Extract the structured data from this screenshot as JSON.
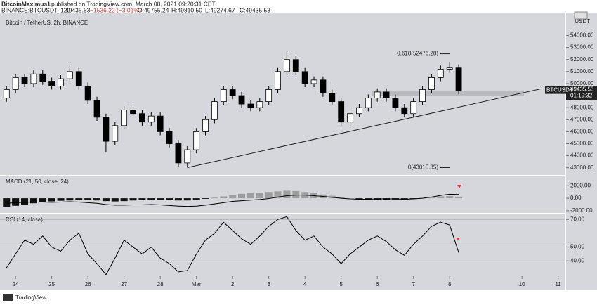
{
  "header": {
    "author": "BitcoinMaximus1",
    "published": "published on TradingView.com, March 08, 2021 09:20:31 CET",
    "symbol": "BINANCE:BTCUSDT, 120",
    "last": "49435.53",
    "change": "−1536.22 (−3.01%)",
    "open": "O:49755.24",
    "high": "H:49810.50",
    "low": "L:49274.67",
    "close": "C:49435.53"
  },
  "footer": {
    "brand": "TradingView"
  },
  "chart_data": [
    {
      "type": "candlestick",
      "title": "Bitcoin / TetherUS, 2h, BINANCE",
      "unit": "USDT",
      "symbol": "BTCUSDT",
      "price_tag": "49435.53",
      "countdown": "01:19:32",
      "x": [
        -0.25,
        0,
        0.25,
        0.5,
        0.75,
        1,
        1.25,
        1.5,
        1.75,
        2,
        2.25,
        2.5,
        2.75,
        3,
        3.25,
        3.5,
        3.75,
        4,
        4.25,
        4.5,
        4.75,
        5,
        5.25,
        5.5,
        5.75,
        6,
        6.25,
        6.5,
        6.75,
        7,
        7.25,
        7.5,
        7.75,
        8,
        8.25,
        8.5,
        8.75,
        9,
        9.25,
        9.5,
        9.75,
        10,
        10.25,
        10.5,
        10.75,
        11,
        11.25,
        11.5,
        11.75,
        12,
        12.25
      ],
      "open": [
        48800,
        49500,
        50500,
        50000,
        50800,
        50200,
        49800,
        50400,
        51000,
        49800,
        48600,
        47200,
        45200,
        46500,
        47800,
        47500,
        46800,
        47300,
        46000,
        45000,
        43400,
        44500,
        46000,
        47000,
        48500,
        49500,
        49000,
        48300,
        48000,
        48500,
        49500,
        51000,
        52000,
        51000,
        50000,
        50300,
        49200,
        48500,
        46800,
        47500,
        48000,
        48800,
        49300,
        48800,
        48000,
        47500,
        48500,
        49500,
        50500,
        51200,
        51300
      ],
      "high": [
        49800,
        50800,
        50800,
        51100,
        51100,
        50500,
        50700,
        51500,
        51300,
        50100,
        48900,
        47500,
        46800,
        48100,
        48100,
        47800,
        47600,
        47600,
        46300,
        45300,
        44800,
        46300,
        47300,
        48800,
        49800,
        49800,
        49300,
        48600,
        48800,
        49800,
        51300,
        52700,
        52300,
        51300,
        50600,
        50600,
        49500,
        48800,
        47800,
        48300,
        49100,
        49600,
        49600,
        49100,
        48300,
        48800,
        49800,
        50800,
        51500,
        51800,
        51600
      ],
      "low": [
        48500,
        49200,
        49700,
        49700,
        49900,
        49500,
        49500,
        50100,
        49500,
        48300,
        46900,
        44300,
        44900,
        46200,
        47200,
        46500,
        46500,
        45700,
        44700,
        43100,
        43015.35,
        44200,
        45700,
        46700,
        48200,
        48700,
        48000,
        47700,
        47700,
        48200,
        49200,
        50700,
        50700,
        49700,
        49700,
        48900,
        48200,
        46500,
        46300,
        47200,
        47700,
        48500,
        48500,
        47700,
        47200,
        47200,
        48200,
        49200,
        50200,
        50900,
        49100
      ],
      "close": [
        49500,
        50500,
        50000,
        50800,
        50200,
        49800,
        50400,
        51000,
        49800,
        48600,
        47200,
        45200,
        46500,
        47800,
        47500,
        46800,
        47300,
        46000,
        45000,
        43400,
        44500,
        46000,
        47000,
        48500,
        49500,
        49000,
        48300,
        48000,
        48500,
        49500,
        51000,
        52000,
        51000,
        50000,
        50300,
        49200,
        48500,
        46800,
        47500,
        48000,
        48800,
        49300,
        48800,
        48000,
        47500,
        48500,
        49500,
        50500,
        51200,
        51300,
        49435.53
      ],
      "colors": {
        "up": "#ffffff",
        "down": "#000000",
        "outline": "#000000"
      },
      "xlim": [
        -0.43,
        15.2
      ],
      "ylim": [
        42400,
        55900
      ],
      "yticks": [
        {
          "value": 54000,
          "label": "54000.00"
        },
        {
          "value": 53000,
          "label": "53000.00"
        },
        {
          "value": 52000,
          "label": "52000.00"
        },
        {
          "value": 51000,
          "label": "51000.00"
        },
        {
          "value": 50000,
          "label": "50000.00"
        },
        {
          "value": 49000,
          "label": "49000.00"
        },
        {
          "value": 48000,
          "label": "48000.00"
        },
        {
          "value": 47000,
          "label": "47000.00"
        },
        {
          "value": 46000,
          "label": "46000.00"
        },
        {
          "value": 45000,
          "label": "45000.00"
        },
        {
          "value": 44000,
          "label": "44000.00"
        },
        {
          "value": 43000,
          "label": "43000.00"
        }
      ],
      "trendline": {
        "x": [
          4.75,
          14.52
        ],
        "y": [
          43015.35,
          49560
        ]
      },
      "zone": {
        "x": [
          9.86,
          14.04
        ],
        "y": [
          48980,
          49400
        ]
      },
      "fib": [
        {
          "label": "0.618(52476.28)",
          "value": 52476.28
        },
        {
          "label": "0(43015.35)",
          "value": 43015.35
        }
      ]
    },
    {
      "type": "macd",
      "title": "MACD (21, 50, close, 24)",
      "x": [
        -0.25,
        0,
        0.25,
        0.5,
        0.75,
        1,
        1.25,
        1.5,
        1.75,
        2,
        2.25,
        2.5,
        2.75,
        3,
        3.25,
        3.5,
        3.75,
        4,
        4.25,
        4.5,
        4.75,
        5,
        5.25,
        5.5,
        5.75,
        6,
        6.25,
        6.5,
        6.75,
        7,
        7.25,
        7.5,
        7.75,
        8,
        8.25,
        8.5,
        8.75,
        9,
        9.25,
        9.5,
        9.75,
        10,
        10.25,
        10.5,
        10.75,
        11,
        11.25,
        11.5,
        11.75,
        12,
        12.25
      ],
      "histogram": [
        -1400,
        -1200,
        -1000,
        -800,
        -600,
        -500,
        -400,
        -350,
        -300,
        -300,
        -350,
        -450,
        -500,
        -450,
        -350,
        -300,
        -250,
        -250,
        -300,
        -350,
        -350,
        -250,
        -100,
        100,
        300,
        500,
        700,
        800,
        900,
        1000,
        1100,
        1200,
        1150,
        1000,
        800,
        600,
        400,
        200,
        0,
        -200,
        -300,
        -300,
        -250,
        -200,
        -200,
        -100,
        50,
        200,
        300,
        350,
        250
      ],
      "macd": [
        -800,
        -700,
        -650,
        -600,
        -600,
        -650,
        -600,
        -550,
        -600,
        -700,
        -800,
        -1000,
        -1100,
        -1100,
        -1050,
        -1050,
        -1000,
        -1050,
        -1150,
        -1250,
        -1300,
        -1250,
        -1100,
        -900,
        -700,
        -500,
        -400,
        -300,
        -200,
        -50,
        200,
        400,
        500,
        500,
        400,
        300,
        150,
        0,
        -100,
        -150,
        -150,
        -100,
        -100,
        -100,
        -150,
        -100,
        0,
        200,
        450,
        650,
        600
      ],
      "colors": {
        "positive": "#9e9e9e",
        "negative": "#111111",
        "line": "#000000"
      },
      "xlim": [
        -0.43,
        15.2
      ],
      "ylim": [
        -2350,
        3500
      ],
      "yticks": [
        {
          "value": 2000,
          "label": "2000.00"
        },
        {
          "value": 0,
          "label": "0.00"
        },
        {
          "value": -2000,
          "label": "-2000.00"
        }
      ]
    },
    {
      "type": "line",
      "title": "RSI (14, close)",
      "x": [
        -0.25,
        0,
        0.25,
        0.5,
        0.75,
        1,
        1.25,
        1.5,
        1.75,
        2,
        2.25,
        2.5,
        2.75,
        3,
        3.25,
        3.5,
        3.75,
        4,
        4.25,
        4.5,
        4.75,
        5,
        5.25,
        5.5,
        5.75,
        6,
        6.25,
        6.5,
        6.75,
        7,
        7.25,
        7.5,
        7.75,
        8,
        8.25,
        8.5,
        8.75,
        9,
        9.25,
        9.5,
        9.75,
        10,
        10.25,
        10.5,
        10.75,
        11,
        11.25,
        11.5,
        11.75,
        12,
        12.25
      ],
      "values": [
        35,
        45,
        55,
        52,
        58,
        50,
        47,
        55,
        60,
        45,
        38,
        30,
        42,
        55,
        50,
        45,
        50,
        42,
        38,
        32,
        33,
        45,
        55,
        60,
        68,
        62,
        56,
        52,
        58,
        65,
        70,
        72,
        62,
        55,
        58,
        50,
        45,
        38,
        45,
        50,
        55,
        58,
        54,
        48,
        44,
        52,
        58,
        65,
        68,
        66,
        46
      ],
      "color": "#000000",
      "xlim": [
        -0.43,
        15.2
      ],
      "ylim": [
        28.9,
        73.7
      ],
      "yticks": [
        {
          "value": 70,
          "label": "70.00"
        },
        {
          "value": 50,
          "label": "50.00"
        },
        {
          "value": 40,
          "label": "40.00"
        }
      ],
      "xticks": [
        {
          "value": 0,
          "label": "24"
        },
        {
          "value": 1,
          "label": "25"
        },
        {
          "value": 2,
          "label": "26"
        },
        {
          "value": 3,
          "label": "27"
        },
        {
          "value": 4,
          "label": "28"
        },
        {
          "value": 5,
          "label": "Mar"
        },
        {
          "value": 6,
          "label": "2"
        },
        {
          "value": 7,
          "label": "3"
        },
        {
          "value": 8,
          "label": "4"
        },
        {
          "value": 9,
          "label": "5"
        },
        {
          "value": 10,
          "label": "6"
        },
        {
          "value": 11,
          "label": "7"
        },
        {
          "value": 12,
          "label": "8"
        },
        {
          "value": 14,
          "label": "10"
        },
        {
          "value": 15,
          "label": "11"
        }
      ]
    }
  ]
}
